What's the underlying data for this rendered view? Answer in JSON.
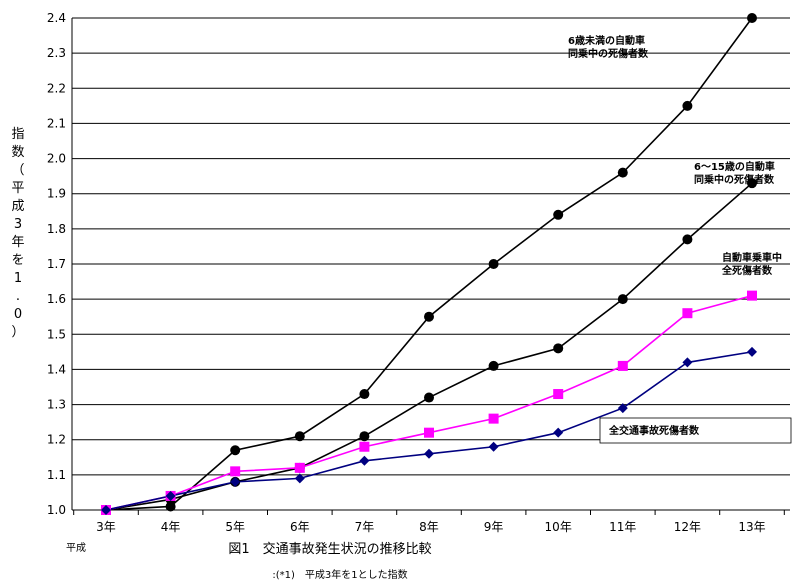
{
  "chart_data": {
    "type": "line",
    "caption": "図1　交通事故発生状況の推移比較",
    "note": ":(*1)　平成3年を1とした指数",
    "x_prefix": "平成",
    "ylabel": "指数（平成3年を1.0）",
    "ylim": [
      1.0,
      2.4
    ],
    "yticks": [
      "1.0",
      "1.1",
      "1.2",
      "1.3",
      "1.4",
      "1.5",
      "1.6",
      "1.7",
      "1.8",
      "1.9",
      "2.0",
      "2.1",
      "2.2",
      "2.3",
      "2.4"
    ],
    "categories": [
      "3年",
      "4年",
      "5年",
      "6年",
      "7年",
      "8年",
      "9年",
      "10年",
      "11年",
      "12年",
      "13年"
    ],
    "grid": true,
    "series": [
      {
        "name": "6歳未満の自動車同乗中の死傷者数",
        "label_lines": [
          "6歳未満の自動車",
          "同乗中の死傷者数"
        ],
        "color": "#000000",
        "marker": "circle",
        "values": [
          1.0,
          1.01,
          1.17,
          1.21,
          1.33,
          1.55,
          1.7,
          1.84,
          1.96,
          2.15,
          2.4
        ]
      },
      {
        "name": "6～15歳の自動車同乗中の死傷者数",
        "label_lines": [
          "6～15歳の自動車",
          "同乗中の死傷者数"
        ],
        "color": "#000000",
        "marker": "circle",
        "values": [
          1.0,
          1.03,
          1.08,
          1.12,
          1.21,
          1.32,
          1.41,
          1.46,
          1.6,
          1.77,
          1.93
        ]
      },
      {
        "name": "自動車乗車中全死傷者数",
        "label_lines": [
          "自動車乗車中",
          "全死傷者数"
        ],
        "color": "#ff00ff",
        "marker": "square",
        "values": [
          1.0,
          1.04,
          1.11,
          1.12,
          1.18,
          1.22,
          1.26,
          1.33,
          1.41,
          1.56,
          1.61
        ]
      },
      {
        "name": "全交通事故死傷者数",
        "label_lines": [
          "全交通事故死傷者数"
        ],
        "color": "#000080",
        "marker": "diamond",
        "values": [
          1.0,
          1.04,
          1.08,
          1.09,
          1.14,
          1.16,
          1.18,
          1.22,
          1.29,
          1.42,
          1.45
        ]
      }
    ]
  }
}
